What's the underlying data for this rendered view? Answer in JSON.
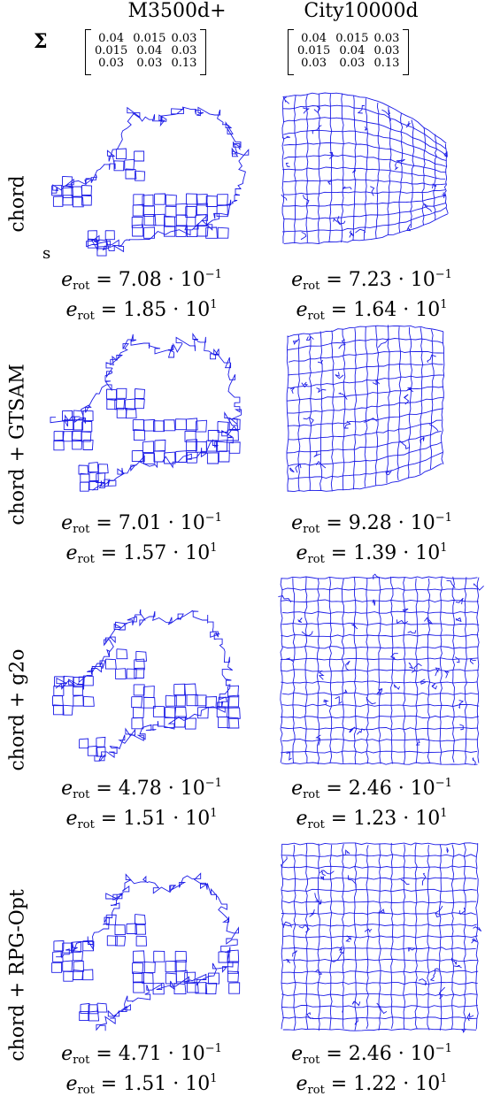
{
  "columns": [
    "M3500d+",
    "City10000d"
  ],
  "sigma_symbol": "Σ",
  "sigma_matrix": [
    [
      "0.04",
      "0.015",
      "0.03"
    ],
    [
      "0.015",
      "0.04",
      "0.03"
    ],
    [
      "0.03",
      "0.03",
      "0.13"
    ]
  ],
  "rows": [
    {
      "label": "chord",
      "m3500": {
        "e1_val": "7.08",
        "e1_exp": "−1",
        "e2_val": "1.85",
        "e2_exp": "1"
      },
      "city": {
        "e1_val": "7.23",
        "e1_exp": "−1",
        "e2_val": "1.64",
        "e2_exp": "1"
      }
    },
    {
      "label": "chord + GTSAM",
      "m3500": {
        "e1_val": "7.01",
        "e1_exp": "−1",
        "e2_val": "1.57",
        "e2_exp": "1"
      },
      "city": {
        "e1_val": "9.28",
        "e1_exp": "−1",
        "e2_val": "1.39",
        "e2_exp": "1"
      }
    },
    {
      "label": "chord + g2o",
      "m3500": {
        "e1_val": "4.78",
        "e1_exp": "−1",
        "e2_val": "1.51",
        "e2_exp": "1"
      },
      "city": {
        "e1_val": "2.46",
        "e1_exp": "−1",
        "e2_val": "1.23",
        "e2_exp": "1"
      }
    },
    {
      "label": "chord + RPG-Opt",
      "m3500": {
        "e1_val": "4.71",
        "e1_exp": "−1",
        "e2_val": "1.51",
        "e2_exp": "1"
      },
      "city": {
        "e1_val": "2.46",
        "e1_exp": "−1",
        "e2_val": "1.22",
        "e2_exp": "1"
      }
    }
  ],
  "metric_symbol": "e",
  "metric_subscript": "rot",
  "metric_base": "10",
  "stray_mark": "s",
  "colors": {
    "trajectory": "#1a1ae6",
    "text": "#000000"
  }
}
